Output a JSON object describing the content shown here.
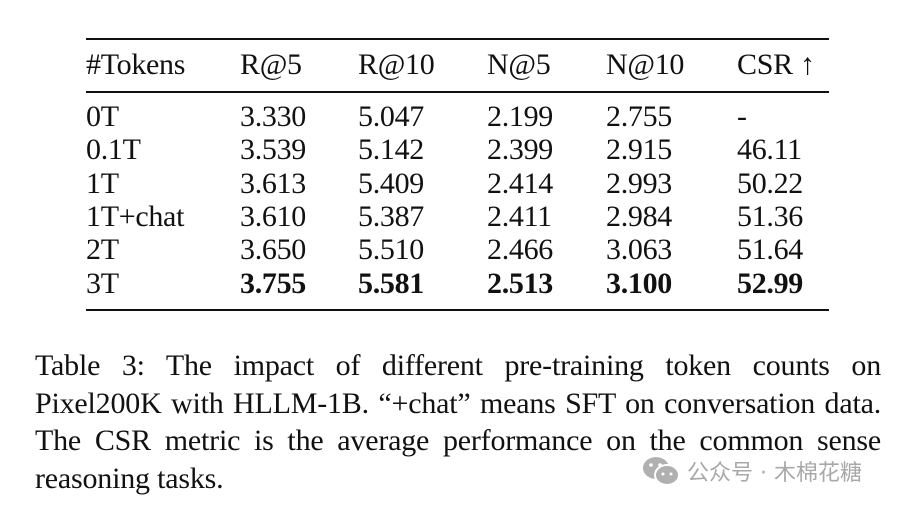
{
  "table": {
    "headers": [
      "#Tokens",
      "R@5",
      "R@10",
      "N@5",
      "N@10",
      "CSR ↑"
    ],
    "rows": [
      {
        "cells": [
          "0T",
          "3.330",
          "5.047",
          "2.199",
          "2.755",
          "-"
        ],
        "bold": false
      },
      {
        "cells": [
          "0.1T",
          "3.539",
          "5.142",
          "2.399",
          "2.915",
          "46.11"
        ],
        "bold": false
      },
      {
        "cells": [
          "1T",
          "3.613",
          "5.409",
          "2.414",
          "2.993",
          "50.22"
        ],
        "bold": false
      },
      {
        "cells": [
          "1T+chat",
          "3.610",
          "5.387",
          "2.411",
          "2.984",
          "51.36"
        ],
        "bold": false
      },
      {
        "cells": [
          "2T",
          "3.650",
          "5.510",
          "2.466",
          "3.063",
          "51.64"
        ],
        "bold": false
      },
      {
        "cells": [
          "3T",
          "3.755",
          "5.581",
          "2.513",
          "3.100",
          "52.99"
        ],
        "bold": true
      }
    ]
  },
  "caption": "Table 3: The impact of different pre-training token counts on Pixel200K with HLLM-1B. “+chat” means SFT on conversation data. The CSR metric is the average performance on the common sense reasoning tasks.",
  "watermark": {
    "icon": "wechat-icon",
    "text": "公众号 · 木棉花糖"
  }
}
